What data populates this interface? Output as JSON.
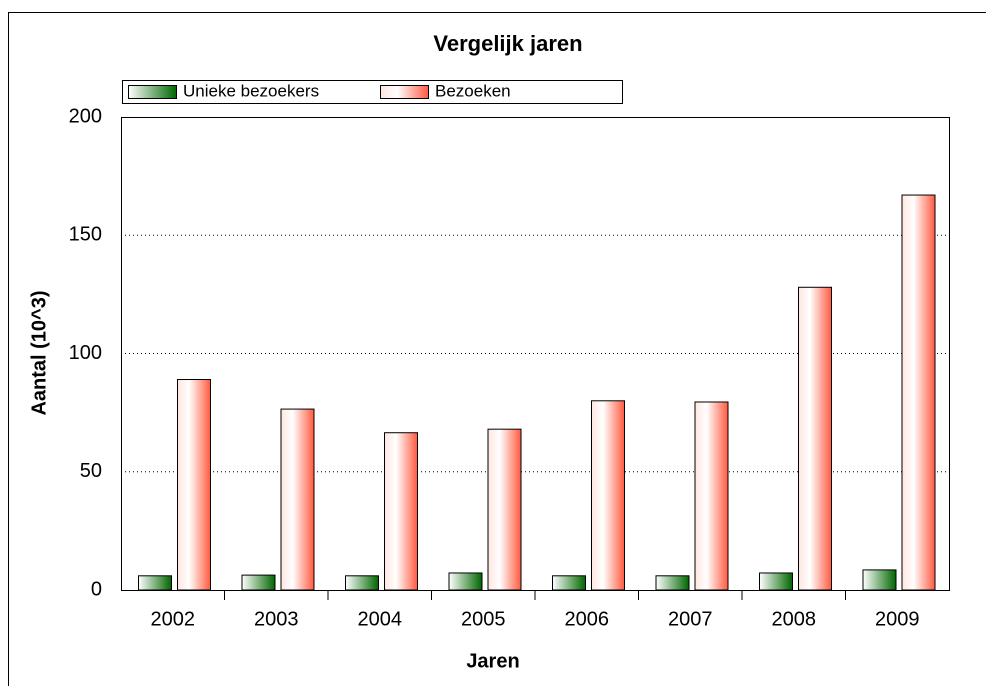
{
  "chart_data": {
    "type": "bar",
    "title": "Vergelijk jaren",
    "x_label": "Jaren",
    "y_label": "Aantal (10^3)",
    "categories": [
      "2002",
      "2003",
      "2004",
      "2005",
      "2006",
      "2007",
      "2008",
      "2009"
    ],
    "series": [
      {
        "name": "Unieke bezoekers",
        "color": "#006600",
        "values": [
          6,
          6.3,
          6,
          7.2,
          6,
          6,
          7.2,
          8.5
        ]
      },
      {
        "name": "Bezoeken",
        "color": "#ff5a40",
        "values": [
          89,
          76.5,
          66.5,
          68,
          80,
          79.5,
          128,
          167
        ]
      }
    ],
    "ylim": [
      0,
      200
    ],
    "yticks": [
      0,
      50,
      100,
      150,
      200
    ],
    "grid": true
  }
}
